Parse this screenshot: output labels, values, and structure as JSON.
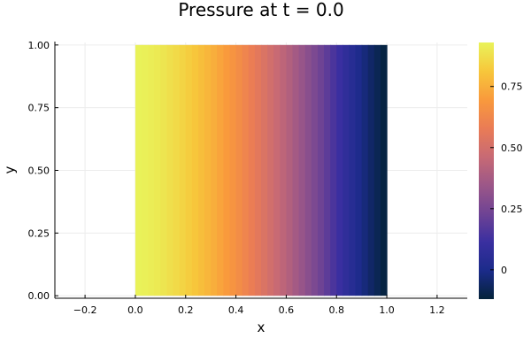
{
  "chart_data": {
    "type": "heatmap",
    "title": "Pressure at t = 0.0",
    "xlabel": "x",
    "ylabel": "y",
    "xlim": [
      -0.32,
      1.32
    ],
    "ylim": [
      -0.01,
      1.01
    ],
    "x_ticks": [
      -0.2,
      0.0,
      0.2,
      0.4,
      0.6,
      0.8,
      1.0,
      1.2
    ],
    "x_tick_labels": [
      "−0.2",
      "0.0",
      "0.2",
      "0.4",
      "0.6",
      "0.8",
      "1.0",
      "1.2"
    ],
    "y_ticks": [
      0.0,
      0.25,
      0.5,
      0.75,
      1.0
    ],
    "y_tick_labels": [
      "0.00",
      "0.25",
      "0.50",
      "0.75",
      "1.00"
    ],
    "grid": true,
    "heat_extent": {
      "x": [
        0.0,
        1.0
      ],
      "y": [
        0.0,
        1.0
      ]
    },
    "z_description": "pressure decreases with x from about 0.93 at x = 0 to about -0.12 at x = 1; nearly constant in y",
    "x_grid": [
      0.0,
      0.05,
      0.1,
      0.15,
      0.2,
      0.25,
      0.3,
      0.35,
      0.4,
      0.45,
      0.5,
      0.55,
      0.6,
      0.65,
      0.7,
      0.75,
      0.8,
      0.85,
      0.9,
      0.95,
      1.0
    ],
    "z_by_x": [
      0.93,
      0.92,
      0.9,
      0.87,
      0.84,
      0.8,
      0.76,
      0.71,
      0.66,
      0.6,
      0.54,
      0.48,
      0.42,
      0.35,
      0.28,
      0.21,
      0.13,
      0.06,
      -0.01,
      -0.07,
      -0.12
    ],
    "colorbar": {
      "limits": [
        -0.12,
        0.93
      ],
      "ticks": [
        0.0,
        0.25,
        0.5,
        0.75
      ],
      "tick_labels": [
        "0",
        "0.25",
        "0.50",
        "0.75"
      ],
      "colormap": "thermal",
      "colors": [
        "#04233a",
        "#1b2b8a",
        "#3a2fa0",
        "#6f4394",
        "#9c5788",
        "#c86a74",
        "#ea7c55",
        "#f99a3c",
        "#f7c73b",
        "#e9f35a"
      ]
    }
  }
}
